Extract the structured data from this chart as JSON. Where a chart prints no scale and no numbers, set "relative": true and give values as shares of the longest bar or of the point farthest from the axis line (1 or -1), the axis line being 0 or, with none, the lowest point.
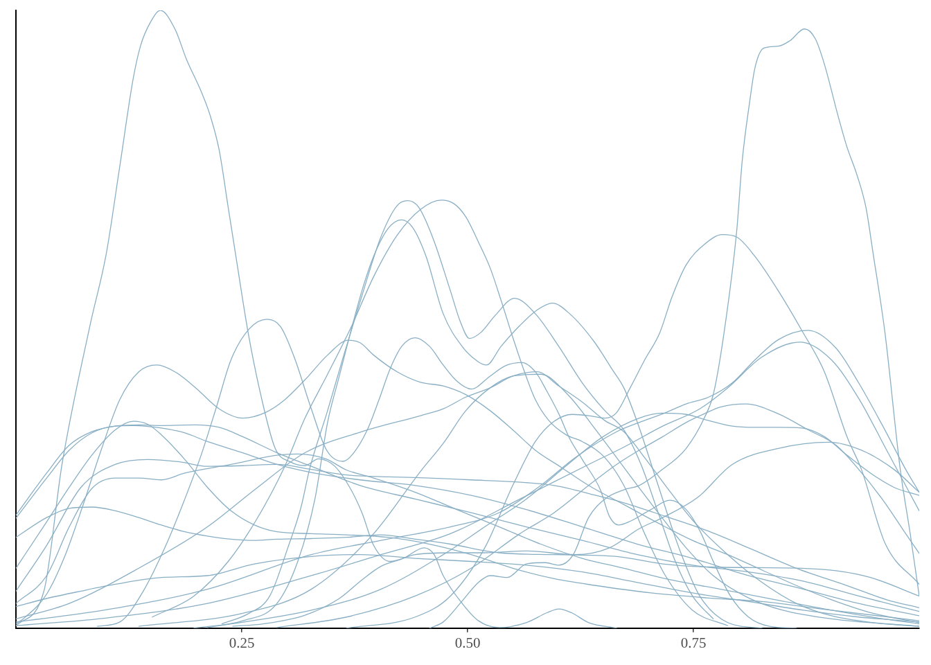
{
  "chart_data": {
    "type": "line",
    "relative": true,
    "xlim": [
      0,
      1
    ],
    "xticks": [
      {
        "value": 0.25,
        "label": "0.25"
      },
      {
        "value": 0.5,
        "label": "0.50"
      },
      {
        "value": 0.75,
        "label": "0.75"
      }
    ],
    "tick_labels": "x",
    "grid": false,
    "legend": false,
    "marker": "none",
    "line_style": "solid",
    "series": [
      {
        "color": "#89afc5",
        "x": [
          0,
          0.031,
          0.051,
          0.082,
          0.1,
          0.115,
          0.13,
          0.138,
          0.149,
          0.16,
          0.176,
          0.189,
          0.205,
          0.215,
          0.225,
          0.235,
          0.245,
          0.257,
          0.271,
          0.287,
          0.304,
          0.32,
          0.335,
          0.353,
          0.371,
          0.383,
          0.396,
          0.414,
          0.442,
          0.481,
          0.519,
          0.565,
          0.619,
          0.657,
          0.69,
          0.716,
          0.755,
          0.793,
          0.844,
          0.9,
          0.936,
          0.972,
          1.0
        ],
        "values": [
          0.004,
          0.06,
          0.265,
          0.49,
          0.606,
          0.748,
          0.891,
          0.943,
          0.981,
          1.0,
          0.97,
          0.92,
          0.869,
          0.83,
          0.774,
          0.681,
          0.588,
          0.479,
          0.378,
          0.291,
          0.269,
          0.263,
          0.274,
          0.262,
          0.224,
          0.187,
          0.134,
          0.108,
          0.119,
          0.122,
          0.122,
          0.125,
          0.119,
          0.13,
          0.161,
          0.179,
          0.212,
          0.265,
          0.291,
          0.301,
          0.288,
          0.257,
          0.22
        ]
      },
      {
        "color": "#89afc5",
        "x": [
          0.458,
          0.473,
          0.494,
          0.512,
          0.525,
          0.544,
          0.565,
          0.586,
          0.601,
          0.617,
          0.634,
          0.652,
          0.673,
          0.69,
          0.713,
          0.742,
          0.762,
          0.772,
          0.784,
          0.798,
          0.804,
          0.812,
          0.818,
          0.828,
          0.844,
          0.857,
          0.873,
          0.885,
          0.895,
          0.91,
          0.92,
          0.931,
          0.941,
          0.949,
          0.962,
          0.979,
          0.99,
          1.0
        ],
        "values": [
          0,
          0.01,
          0.044,
          0.074,
          0.085,
          0.082,
          0.104,
          0.106,
          0.102,
          0.119,
          0.179,
          0.209,
          0.224,
          0.231,
          0.254,
          0.291,
          0.34,
          0.378,
          0.479,
          0.644,
          0.756,
          0.849,
          0.906,
          0.939,
          0.942,
          0.951,
          0.97,
          0.954,
          0.913,
          0.83,
          0.779,
          0.734,
          0.681,
          0.606,
          0.479,
          0.257,
          0.153,
          0.052
        ]
      },
      {
        "color": "#89afc5",
        "x": [
          0.366,
          0.442,
          0.481,
          0.519,
          0.55,
          0.575,
          0.596,
          0.616,
          0.634,
          0.652,
          0.665,
          0.68,
          0.696,
          0.713,
          0.726,
          0.742,
          0.762,
          0.782,
          0.798,
          0.818,
          0.844,
          0.87,
          0.895,
          0.92,
          0.936,
          0.962,
          1.0
        ],
        "values": [
          0,
          0.018,
          0.052,
          0.13,
          0.231,
          0.302,
          0.335,
          0.346,
          0.344,
          0.34,
          0.349,
          0.389,
          0.434,
          0.479,
          0.535,
          0.588,
          0.621,
          0.637,
          0.633,
          0.602,
          0.546,
          0.482,
          0.415,
          0.31,
          0.257,
          0.138,
          0.071
        ]
      },
      {
        "color": "#89afc5",
        "x": [
          0.24,
          0.274,
          0.32,
          0.358,
          0.383,
          0.404,
          0.429,
          0.452,
          0.463,
          0.473,
          0.494,
          0.512,
          0.535,
          0.565,
          0.588,
          0.601,
          0.615,
          0.634,
          0.665
        ],
        "values": [
          0.003,
          0.007,
          0.021,
          0.048,
          0.078,
          0.1,
          0.113,
          0.13,
          0.119,
          0.085,
          0.04,
          0.012,
          0.001,
          0.009,
          0.025,
          0.031,
          0.025,
          0.009,
          0
        ]
      },
      {
        "color": "#89afc5",
        "x": [
          0,
          0.097,
          0.212,
          0.327,
          0.404,
          0.481,
          0.535,
          0.581,
          0.619,
          0.665,
          0.69,
          0.716,
          0.742,
          0.767,
          0.793,
          0.818,
          0.844,
          0.877,
          0.908,
          0.933,
          0.959,
          0.985,
          1.0
        ],
        "values": [
          0.01,
          0.029,
          0.063,
          0.119,
          0.142,
          0.164,
          0.187,
          0.231,
          0.276,
          0.318,
          0.333,
          0.347,
          0.363,
          0.374,
          0.397,
          0.434,
          0.467,
          0.482,
          0.453,
          0.397,
          0.329,
          0.257,
          0.22
        ]
      },
      {
        "color": "#89afc5",
        "x": [
          0,
          0.097,
          0.212,
          0.327,
          0.404,
          0.481,
          0.558,
          0.634,
          0.673,
          0.716,
          0.757,
          0.788,
          0.826,
          0.868,
          0.903,
          0.933,
          0.964,
          1.0
        ],
        "values": [
          0.004,
          0.016,
          0.04,
          0.085,
          0.119,
          0.153,
          0.209,
          0.265,
          0.293,
          0.327,
          0.355,
          0.389,
          0.439,
          0.463,
          0.434,
          0.372,
          0.288,
          0.19
        ]
      },
      {
        "color": "#89afc5",
        "x": [
          0.09,
          0.115,
          0.141,
          0.166,
          0.184,
          0.205,
          0.222,
          0.238,
          0.258,
          0.278,
          0.293,
          0.308,
          0.327,
          0.344,
          0.362,
          0.373,
          0.389,
          0.402,
          0.414,
          0.427,
          0.442,
          0.458,
          0.473,
          0.488,
          0.504,
          0.525,
          0.542,
          0.56,
          0.575,
          0.588,
          0.601,
          0.613,
          0.627,
          0.647,
          0.657,
          0.667,
          0.68,
          0.703,
          0.724,
          0.742,
          0.757,
          0.772,
          0.791,
          0.811,
          0.834,
          0.864
        ],
        "values": [
          0.003,
          0.01,
          0.06,
          0.134,
          0.198,
          0.28,
          0.358,
          0.434,
          0.484,
          0.5,
          0.488,
          0.439,
          0.355,
          0.288,
          0.27,
          0.282,
          0.321,
          0.37,
          0.419,
          0.456,
          0.47,
          0.456,
          0.426,
          0.4,
          0.387,
          0.408,
          0.425,
          0.43,
          0.415,
          0.383,
          0.347,
          0.307,
          0.273,
          0.224,
          0.181,
          0.167,
          0.173,
          0.192,
          0.207,
          0.192,
          0.158,
          0.108,
          0.052,
          0.018,
          0.003,
          0
        ]
      },
      {
        "color": "#89afc5",
        "x": [
          0.228,
          0.258,
          0.281,
          0.301,
          0.316,
          0.325,
          0.345,
          0.363,
          0.383,
          0.404,
          0.422,
          0.434,
          0.446,
          0.462,
          0.481,
          0.492,
          0.502,
          0.515,
          0.531,
          0.552,
          0.575,
          0.601,
          0.627,
          0.652,
          0.673,
          0.692,
          0.711,
          0.73,
          0.749,
          0.772
        ],
        "values": [
          0.007,
          0.024,
          0.052,
          0.13,
          0.198,
          0.257,
          0.352,
          0.442,
          0.538,
          0.633,
          0.684,
          0.692,
          0.681,
          0.63,
          0.546,
          0.496,
          0.469,
          0.479,
          0.507,
          0.534,
          0.509,
          0.456,
          0.397,
          0.352,
          0.321,
          0.265,
          0.187,
          0.108,
          0.052,
          0.015
        ]
      },
      {
        "color": "#89afc5",
        "x": [
          0.197,
          0.251,
          0.289,
          0.312,
          0.331,
          0.345,
          0.358,
          0.371,
          0.383,
          0.396,
          0.412,
          0.427,
          0.439,
          0.454,
          0.473,
          0.494,
          0.512,
          0.521,
          0.537,
          0.558,
          0.577,
          0.594,
          0.613,
          0.64,
          0.66,
          0.673,
          0.688,
          0.711,
          0.734,
          0.757,
          0.788,
          0.826
        ],
        "values": [
          0,
          0.012,
          0.04,
          0.108,
          0.209,
          0.333,
          0.408,
          0.482,
          0.546,
          0.602,
          0.647,
          0.661,
          0.649,
          0.602,
          0.509,
          0.456,
          0.431,
          0.426,
          0.456,
          0.49,
          0.515,
          0.526,
          0.509,
          0.464,
          0.419,
          0.389,
          0.333,
          0.231,
          0.13,
          0.052,
          0.009,
          0
        ]
      },
      {
        "color": "#89afc5",
        "x": [
          0.151,
          0.197,
          0.235,
          0.266,
          0.297,
          0.32,
          0.345,
          0.371,
          0.396,
          0.422,
          0.448,
          0.471,
          0.485,
          0.498,
          0.512,
          0.525,
          0.537,
          0.55,
          0.563,
          0.575,
          0.59,
          0.609,
          0.627,
          0.652,
          0.673,
          0.696,
          0.719,
          0.749,
          0.788
        ],
        "values": [
          0.018,
          0.052,
          0.108,
          0.175,
          0.26,
          0.34,
          0.411,
          0.487,
          0.569,
          0.636,
          0.678,
          0.693,
          0.687,
          0.666,
          0.625,
          0.583,
          0.531,
          0.471,
          0.415,
          0.37,
          0.336,
          0.313,
          0.302,
          0.276,
          0.231,
          0.153,
          0.085,
          0.029,
          0.004
        ]
      },
      {
        "color": "#89afc5",
        "x": [
          0,
          0.008,
          0.034,
          0.054,
          0.074,
          0.095,
          0.115,
          0.136,
          0.156,
          0.176,
          0.199,
          0.225,
          0.251,
          0.276,
          0.297,
          0.32,
          0.345,
          0.368,
          0.381,
          0.396,
          0.422,
          0.448,
          0.473,
          0.498,
          0.525,
          0.55,
          0.575,
          0.604,
          0.634,
          0.673,
          0.711,
          0.749,
          0.788,
          0.826,
          0.864,
          0.903,
          0.949,
          1.0
        ],
        "values": [
          0.007,
          0.015,
          0.055,
          0.116,
          0.198,
          0.291,
          0.37,
          0.415,
          0.426,
          0.415,
          0.389,
          0.355,
          0.34,
          0.349,
          0.369,
          0.402,
          0.442,
          0.466,
          0.462,
          0.442,
          0.415,
          0.398,
          0.392,
          0.378,
          0.352,
          0.321,
          0.288,
          0.26,
          0.231,
          0.2,
          0.17,
          0.142,
          0.119,
          0.094,
          0.069,
          0.046,
          0.024,
          0.009
        ]
      },
      {
        "color": "#89afc5",
        "x": [
          0,
          0.034,
          0.059,
          0.084,
          0.11,
          0.136,
          0.161,
          0.199,
          0.225,
          0.251,
          0.289,
          0.327,
          0.381,
          0.442,
          0.504,
          0.565,
          0.627,
          0.688,
          0.749,
          0.811,
          0.872,
          0.933,
          1.0
        ],
        "values": [
          0.183,
          0.251,
          0.296,
          0.318,
          0.327,
          0.329,
          0.328,
          0.329,
          0.325,
          0.31,
          0.284,
          0.262,
          0.231,
          0.209,
          0.187,
          0.164,
          0.142,
          0.119,
          0.102,
          0.091,
          0.076,
          0.052,
          0.027
        ]
      },
      {
        "color": "#89afc5",
        "x": [
          0,
          0.034,
          0.059,
          0.084,
          0.11,
          0.13,
          0.161,
          0.187,
          0.212,
          0.251,
          0.289,
          0.327,
          0.381,
          0.442,
          0.504,
          0.565,
          0.627,
          0.688,
          0.749,
          0.811,
          0.872,
          0.933,
          1.0
        ],
        "values": [
          0.178,
          0.243,
          0.288,
          0.316,
          0.327,
          0.328,
          0.324,
          0.316,
          0.302,
          0.284,
          0.265,
          0.252,
          0.24,
          0.231,
          0.215,
          0.192,
          0.164,
          0.136,
          0.113,
          0.085,
          0.063,
          0.04,
          0.02
        ]
      },
      {
        "color": "#89afc5",
        "x": [
          0,
          0.034,
          0.059,
          0.084,
          0.11,
          0.13,
          0.146,
          0.161,
          0.187,
          0.212,
          0.238,
          0.264,
          0.289,
          0.327,
          0.366,
          0.412,
          0.458,
          0.504,
          0.55,
          0.596,
          0.642,
          0.703,
          0.765,
          0.826,
          0.903,
          1.0
        ],
        "values": [
          0.097,
          0.172,
          0.228,
          0.28,
          0.321,
          0.335,
          0.33,
          0.313,
          0.273,
          0.228,
          0.19,
          0.167,
          0.156,
          0.153,
          0.151,
          0.147,
          0.136,
          0.119,
          0.097,
          0.08,
          0.069,
          0.057,
          0.049,
          0.043,
          0.029,
          0.012
        ]
      },
      {
        "color": "#89afc5",
        "x": [
          0,
          0.034,
          0.059,
          0.084,
          0.11,
          0.136,
          0.161,
          0.187,
          0.212,
          0.238,
          0.264,
          0.289,
          0.327,
          0.366,
          0.404,
          0.442,
          0.481,
          0.535,
          0.596,
          0.665,
          0.716,
          0.767,
          0.818,
          0.87,
          0.908,
          0.946,
          1.0
        ],
        "values": [
          0.147,
          0.179,
          0.194,
          0.196,
          0.19,
          0.179,
          0.167,
          0.156,
          0.149,
          0.144,
          0.142,
          0.144,
          0.145,
          0.147,
          0.151,
          0.144,
          0.136,
          0.122,
          0.119,
          0.116,
          0.104,
          0.099,
          0.098,
          0.097,
          0.093,
          0.082,
          0.052
        ]
      },
      {
        "color": "#89afc5",
        "x": [
          0,
          0.034,
          0.072,
          0.11,
          0.146,
          0.182,
          0.212,
          0.251,
          0.289,
          0.327,
          0.366,
          0.412,
          0.458,
          0.504,
          0.55,
          0.596,
          0.642,
          0.673,
          0.719,
          0.765,
          0.811,
          0.864,
          0.92,
          0.964,
          1.0
        ],
        "values": [
          0.06,
          0.134,
          0.228,
          0.265,
          0.273,
          0.269,
          0.262,
          0.263,
          0.265,
          0.257,
          0.248,
          0.245,
          0.243,
          0.24,
          0.237,
          0.231,
          0.215,
          0.203,
          0.181,
          0.158,
          0.13,
          0.097,
          0.069,
          0.046,
          0.033
        ]
      },
      {
        "color": "#89afc5",
        "x": [
          0,
          0.034,
          0.059,
          0.084,
          0.11,
          0.136,
          0.161,
          0.187,
          0.238,
          0.289,
          0.312,
          0.343,
          0.366,
          0.396,
          0.442,
          0.488,
          0.535,
          0.581,
          0.627,
          0.673,
          0.719,
          0.78,
          0.841,
          0.903,
          0.956,
          1.0
        ],
        "values": [
          0.04,
          0.085,
          0.164,
          0.226,
          0.243,
          0.243,
          0.24,
          0.251,
          0.265,
          0.28,
          0.282,
          0.274,
          0.256,
          0.243,
          0.22,
          0.192,
          0.164,
          0.136,
          0.113,
          0.097,
          0.08,
          0.063,
          0.046,
          0.029,
          0.016,
          0.007
        ]
      },
      {
        "color": "#89afc5",
        "x": [
          0,
          0.059,
          0.136,
          0.212,
          0.266,
          0.32,
          0.383,
          0.448,
          0.473,
          0.498,
          0.525,
          0.55,
          0.577,
          0.601,
          0.627,
          0.652,
          0.673,
          0.696,
          0.719,
          0.749,
          0.788,
          0.826,
          0.864,
          0.903,
          0.949,
          1.0
        ],
        "values": [
          0.015,
          0.04,
          0.097,
          0.164,
          0.226,
          0.284,
          0.318,
          0.344,
          0.355,
          0.374,
          0.389,
          0.408,
          0.415,
          0.392,
          0.366,
          0.336,
          0.318,
          0.276,
          0.231,
          0.175,
          0.119,
          0.074,
          0.04,
          0.02,
          0.009,
          0.003
        ]
      },
      {
        "color": "#89afc5",
        "x": [
          0.136,
          0.251,
          0.327,
          0.396,
          0.448,
          0.473,
          0.498,
          0.525,
          0.55,
          0.581,
          0.611,
          0.642,
          0.665,
          0.688,
          0.711,
          0.742,
          0.772,
          0.811,
          0.849,
          0.903,
          1.0
        ],
        "values": [
          0.003,
          0.024,
          0.063,
          0.153,
          0.254,
          0.299,
          0.352,
          0.389,
          0.408,
          0.411,
          0.378,
          0.321,
          0.276,
          0.231,
          0.187,
          0.13,
          0.085,
          0.049,
          0.029,
          0.015,
          0.003
        ]
      },
      {
        "color": "#89afc5",
        "x": [
          0.289,
          0.366,
          0.442,
          0.504,
          0.558,
          0.596,
          0.634,
          0.665,
          0.69,
          0.716,
          0.742,
          0.762,
          0.78,
          0.808,
          0.844,
          0.877,
          0.908,
          0.933,
          0.959,
          0.985,
          1.0
        ],
        "values": [
          0.001,
          0.018,
          0.052,
          0.097,
          0.153,
          0.187,
          0.231,
          0.265,
          0.288,
          0.31,
          0.333,
          0.347,
          0.358,
          0.363,
          0.347,
          0.321,
          0.296,
          0.257,
          0.209,
          0.153,
          0.121
        ]
      },
      {
        "color": "#89afc5",
        "x": [
          0.212,
          0.327,
          0.404,
          0.473,
          0.519,
          0.565,
          0.611,
          0.65,
          0.69,
          0.716,
          0.742,
          0.767,
          0.793,
          0.818,
          0.844,
          0.87,
          0.895,
          0.92,
          0.946,
          0.972,
          1.0
        ],
        "values": [
          0.001,
          0.029,
          0.063,
          0.119,
          0.164,
          0.209,
          0.265,
          0.31,
          0.34,
          0.348,
          0.346,
          0.336,
          0.327,
          0.325,
          0.325,
          0.324,
          0.31,
          0.28,
          0.251,
          0.228,
          0.215
        ]
      },
      {
        "color": "#89afc5",
        "x": [
          0,
          0.034,
          0.072,
          0.11,
          0.161,
          0.212,
          0.264,
          0.327,
          0.381,
          0.442,
          0.504,
          0.565,
          0.627,
          0.688,
          0.749,
          0.811,
          0.872,
          0.933,
          1.0
        ],
        "values": [
          0.035,
          0.048,
          0.06,
          0.071,
          0.082,
          0.085,
          0.104,
          0.116,
          0.119,
          0.113,
          0.108,
          0.102,
          0.091,
          0.074,
          0.057,
          0.043,
          0.029,
          0.018,
          0.01
        ]
      }
    ]
  }
}
